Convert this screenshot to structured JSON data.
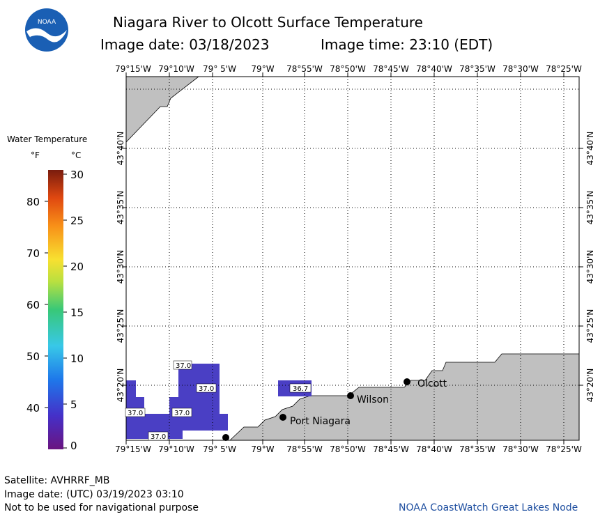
{
  "header": {
    "title": "Niagara River to Olcott Surface Temperature",
    "date_label": "Image date: 03/18/2023",
    "time_label": "Image time: 23:10 (EDT)",
    "logo_text": "NOAA"
  },
  "legend": {
    "title": "Water Temperature",
    "unit_f": "°F",
    "unit_c": "°C",
    "f_ticks": [
      "80",
      "70",
      "60",
      "50",
      "40"
    ],
    "c_ticks": [
      "30",
      "25",
      "20",
      "15",
      "10",
      "5",
      "0"
    ]
  },
  "map": {
    "lon_labels": [
      "79°15'W",
      "79°10'W",
      "79° 5'W",
      "79°W",
      "78°55'W",
      "78°50'W",
      "78°45'W",
      "78°40'W",
      "78°35'W",
      "78°30'W",
      "78°25'W"
    ],
    "lat_labels": [
      "43°40'N",
      "43°35'N",
      "43°30'N",
      "43°25'N",
      "43°20'N"
    ],
    "places": [
      "Olcott",
      "Wilson",
      "Port Niagara"
    ],
    "temp_labels": [
      "37.0",
      "37.0",
      "37.0",
      "37.0",
      "36.7",
      "37.0"
    ],
    "colors": {
      "land": "#c0c0c0",
      "water_37": "#4a3fc4"
    }
  },
  "footer": {
    "satellite": "Satellite: AVHRRF_MB",
    "utc_date": "Image date: (UTC) 03/19/2023  03:10",
    "disclaimer": "Not to be used for navigational purpose",
    "credit": "NOAA CoastWatch Great Lakes Node"
  }
}
